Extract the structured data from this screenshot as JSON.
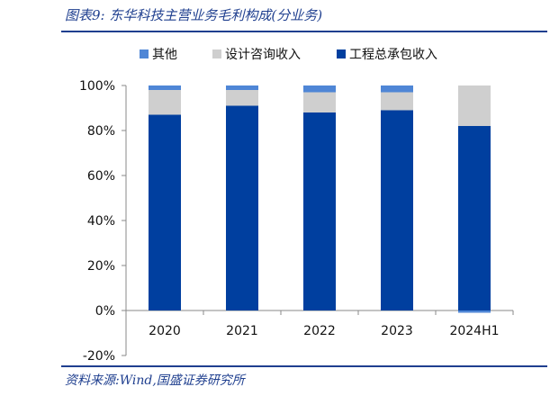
{
  "title": "图表9:  东华科技主营业务毛利构成(分业务)",
  "source": "资料来源:Wind,国盛证券研究所",
  "colors": {
    "title": "#1f3f8f",
    "engineering": "#003f9f",
    "design": "#cfcfcf",
    "other": "#4f86d6"
  },
  "chart_data": {
    "type": "bar",
    "stacked": true,
    "categories": [
      "2020",
      "2021",
      "2022",
      "2023",
      "2024H1"
    ],
    "series": [
      {
        "name": "工程总承包收入",
        "color": "#003f9f",
        "values": [
          87,
          91,
          88,
          89,
          82
        ]
      },
      {
        "name": "设计咨询收入",
        "color": "#cfcfcf",
        "values": [
          11,
          7,
          9,
          8,
          18
        ]
      },
      {
        "name": "其他",
        "color": "#4f86d6",
        "values": [
          2,
          2,
          3,
          3,
          -1
        ]
      }
    ],
    "legend_order": [
      "其他",
      "设计咨询收入",
      "工程总承包收入"
    ],
    "ylim": [
      -20,
      100
    ],
    "yticks": [
      "-20%",
      "0%",
      "20%",
      "40%",
      "60%",
      "80%",
      "100%"
    ],
    "grid": false,
    "legend_position": "top"
  }
}
